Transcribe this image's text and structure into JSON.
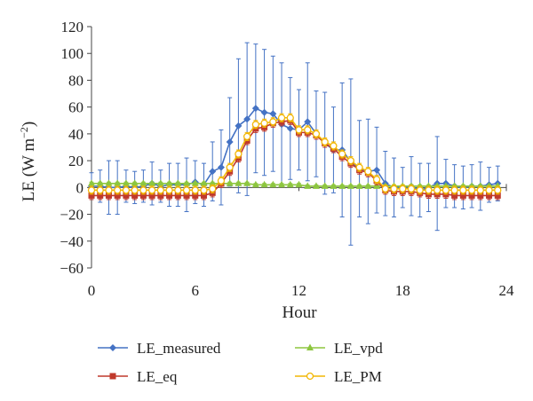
{
  "chart_data": {
    "type": "line",
    "xlabel": "Hour",
    "ylabel": "LE (W m",
    "ylabel_sup": "−2",
    "ylabel_close": ")",
    "xlim": [
      0,
      24
    ],
    "ylim": [
      -60,
      120
    ],
    "xticks": [
      0,
      6,
      12,
      18,
      24
    ],
    "xtick_labels": [
      "0",
      "6",
      "12",
      "18",
      "24"
    ],
    "yticks": [
      -60,
      -40,
      -20,
      0,
      20,
      40,
      60,
      80,
      100,
      120
    ],
    "ytick_labels": [
      "−60",
      "−40",
      "−20",
      "0",
      "20",
      "40",
      "60",
      "80",
      "100",
      "120"
    ],
    "grid": false,
    "legend_placement": "bottom",
    "x": [
      0,
      0.5,
      1,
      1.5,
      2,
      2.5,
      3,
      3.5,
      4,
      4.5,
      5,
      5.5,
      6,
      6.5,
      7,
      7.5,
      8,
      8.5,
      9,
      9.5,
      10,
      10.5,
      11,
      11.5,
      12,
      12.5,
      13,
      13.5,
      14,
      14.5,
      15,
      15.5,
      16,
      16.5,
      17,
      17.5,
      18,
      18.5,
      19,
      19.5,
      20,
      20.5,
      21,
      21.5,
      22,
      22.5,
      23,
      23.5
    ],
    "series": [
      {
        "name": "LE_measured",
        "color": "#4472c4",
        "marker": "diamond",
        "values": [
          1,
          1,
          0,
          0,
          1,
          0,
          1,
          3,
          1,
          2,
          2,
          2,
          4,
          2,
          12,
          15,
          34,
          46,
          51,
          59,
          56,
          55,
          47,
          44,
          43,
          49,
          40,
          33,
          28,
          28,
          19,
          14,
          12,
          13,
          3,
          0,
          0,
          1,
          -2,
          0,
          3,
          3,
          1,
          0,
          1,
          1,
          2,
          3
        ],
        "error": [
          10,
          12,
          20,
          20,
          12,
          12,
          12,
          16,
          12,
          16,
          16,
          20,
          16,
          16,
          22,
          28,
          33,
          50,
          57,
          48,
          47,
          43,
          46,
          38,
          30,
          44,
          32,
          38,
          32,
          50,
          62,
          36,
          39,
          32,
          24,
          22,
          15,
          22,
          20,
          18,
          35,
          18,
          16,
          16,
          16,
          18,
          13,
          13
        ]
      },
      {
        "name": "LE_eq",
        "color": "#c0392b",
        "marker": "square",
        "values": [
          -6,
          -6,
          -6,
          -6,
          -6,
          -6,
          -6,
          -6,
          -6,
          -6,
          -6,
          -6,
          -6,
          -6,
          -4,
          3,
          12,
          22,
          35,
          44,
          45,
          48,
          49,
          50,
          41,
          41,
          39,
          33,
          29,
          23,
          18,
          13,
          11,
          5,
          -2,
          -3,
          -3,
          -3,
          -4,
          -5,
          -5,
          -5,
          -6,
          -6,
          -6,
          -6,
          -6,
          -6
        ],
        "error": [
          3,
          3,
          3,
          3,
          3,
          3,
          3,
          3,
          3,
          3,
          3,
          3,
          3,
          3,
          3,
          3,
          3,
          3,
          3,
          3,
          3,
          3,
          3,
          3,
          3,
          3,
          3,
          3,
          3,
          3,
          3,
          3,
          3,
          3,
          3,
          3,
          3,
          3,
          3,
          3,
          3,
          3,
          3,
          3,
          3,
          3,
          3,
          3
        ]
      },
      {
        "name": "LE_vpd",
        "color": "#8dc63f",
        "marker": "triangle",
        "values": [
          3,
          3,
          3,
          3,
          3,
          3,
          3,
          3,
          3,
          3,
          3,
          3,
          3,
          3,
          3,
          3,
          3,
          3,
          3,
          2,
          2,
          2,
          2,
          2,
          2,
          1,
          1,
          1,
          1,
          1,
          1,
          1,
          1,
          1,
          1,
          1,
          1,
          1,
          1,
          1,
          1,
          1,
          1,
          1,
          1,
          1,
          1,
          1
        ],
        "error": [
          1,
          1,
          1,
          1,
          1,
          1,
          1,
          1,
          1,
          1,
          1,
          1,
          1,
          1,
          1,
          1,
          1,
          1,
          1,
          1,
          1,
          1,
          1,
          1,
          1,
          1,
          1,
          1,
          1,
          1,
          1,
          1,
          1,
          1,
          1,
          1,
          1,
          1,
          1,
          1,
          1,
          1,
          1,
          1,
          1,
          1,
          1,
          1
        ]
      },
      {
        "name": "LE_PM",
        "color": "#f2b705",
        "marker": "circle",
        "values": [
          -2,
          -2,
          -2,
          -2,
          -2,
          -2,
          -2,
          -2,
          -2,
          -2,
          -2,
          -2,
          -2,
          -2,
          -1,
          5,
          15,
          25,
          38,
          47,
          48,
          49,
          52,
          52,
          43,
          43,
          40,
          34,
          31,
          25,
          20,
          15,
          12,
          6,
          -1,
          -1,
          -1,
          -1,
          -2,
          -2,
          -2,
          -2,
          -2,
          -2,
          -2,
          -2,
          -2,
          -2
        ],
        "error": [
          3,
          3,
          3,
          3,
          3,
          3,
          3,
          3,
          3,
          3,
          3,
          3,
          3,
          3,
          3,
          3,
          3,
          3,
          3,
          3,
          3,
          3,
          3,
          3,
          3,
          3,
          3,
          3,
          3,
          3,
          3,
          3,
          3,
          3,
          3,
          3,
          3,
          3,
          3,
          3,
          3,
          3,
          3,
          3,
          3,
          3,
          3,
          3
        ]
      }
    ],
    "legend_order": [
      "LE_measured",
      "LE_vpd",
      "LE_eq",
      "LE_PM"
    ]
  }
}
